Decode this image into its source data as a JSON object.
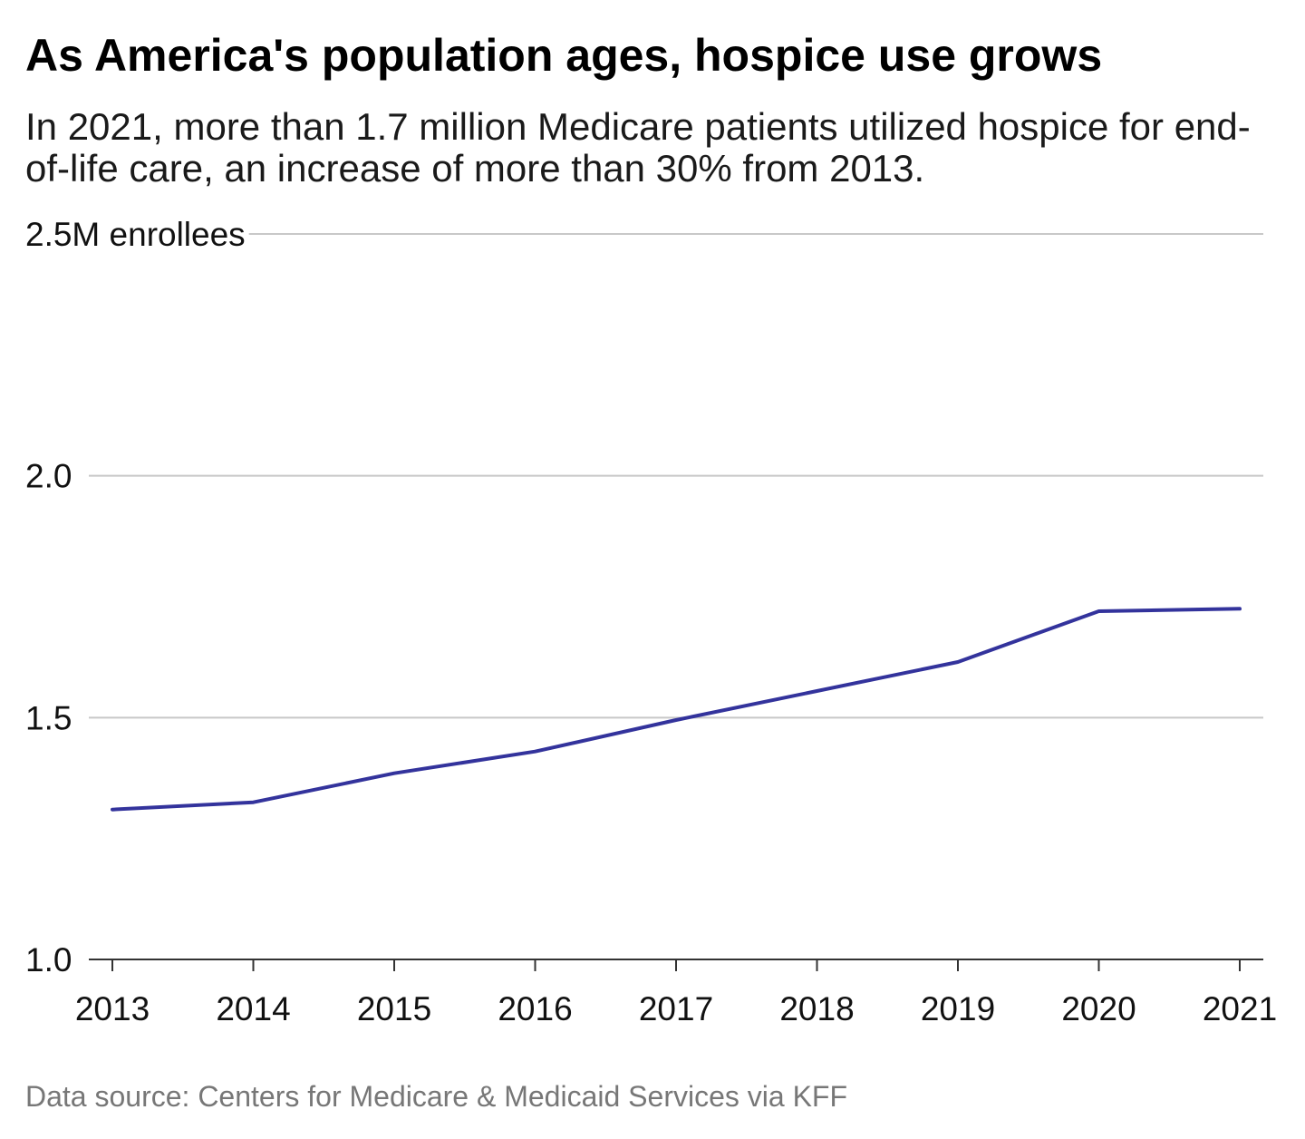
{
  "title": "As America's population ages, hospice use grows",
  "subtitle": "In 2021, more than 1.7 million Medicare patients utilized hospice for end-of-life care, an increase of more than 30% from 2013.",
  "source": "Data source: Centers for Medicare & Medicaid Services via KFF",
  "colors": {
    "line": "#33339c",
    "grid": "#c8c8c8",
    "axis": "#333333"
  },
  "chart_data": {
    "type": "line",
    "x": [
      "2013",
      "2014",
      "2015",
      "2016",
      "2017",
      "2018",
      "2019",
      "2020",
      "2021"
    ],
    "series": [
      {
        "values": [
          1.31,
          1.325,
          1.385,
          1.43,
          1.495,
          1.555,
          1.615,
          1.72,
          1.725
        ]
      }
    ],
    "y_ticks": [
      1.0,
      1.5,
      2.0,
      2.5
    ],
    "y_tick_labels": [
      "1.0",
      "1.5",
      "2.0",
      "2.5M enrollees"
    ],
    "ylim": [
      1.0,
      2.5
    ],
    "grid": true,
    "legend": "none"
  }
}
